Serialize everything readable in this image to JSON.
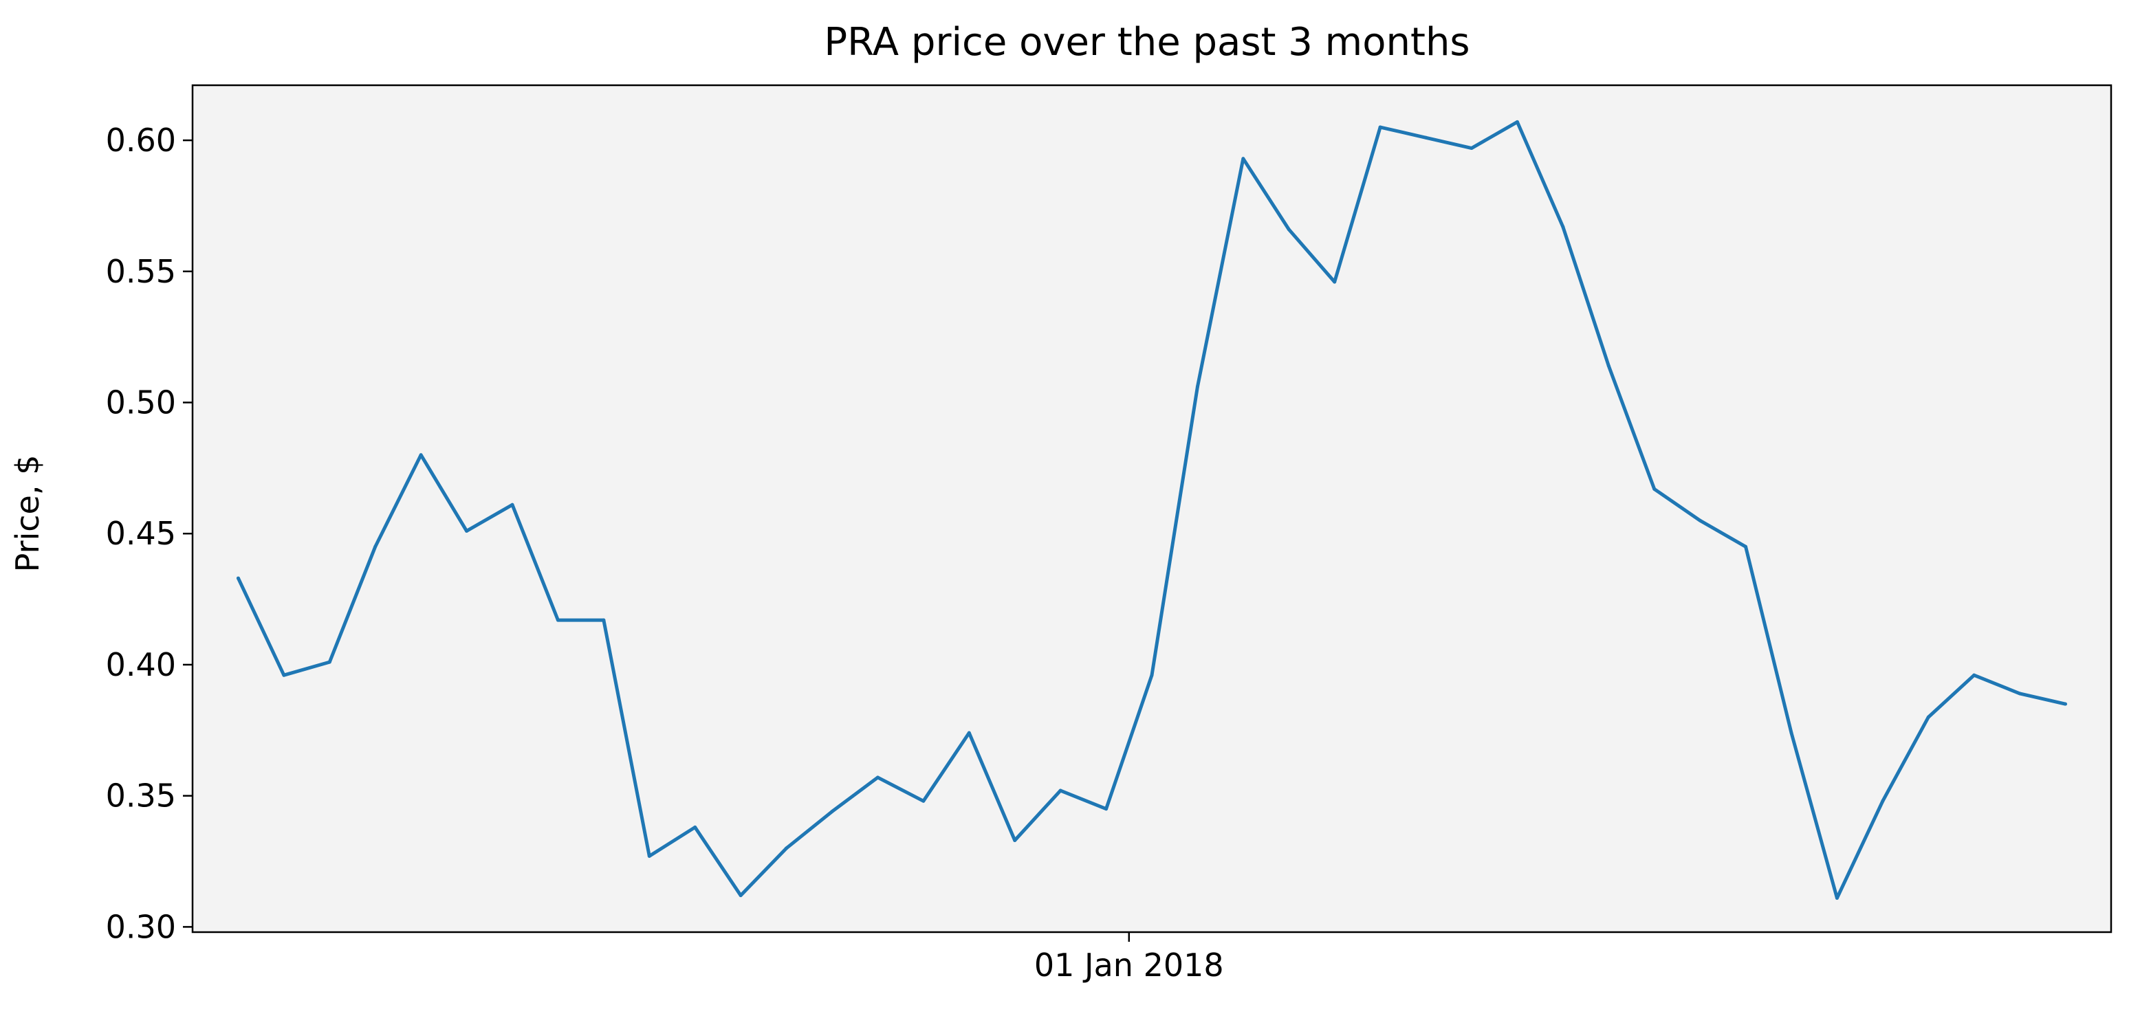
{
  "chart_data": {
    "type": "line",
    "title": "PRA price over the past 3 months",
    "xlabel": "",
    "ylabel": "Price, $",
    "ylim": [
      0.298,
      0.621
    ],
    "yticks": [
      0.3,
      0.35,
      0.4,
      0.45,
      0.5,
      0.55,
      0.6
    ],
    "ytick_labels": [
      "0.30",
      "0.35",
      "0.40",
      "0.45",
      "0.50",
      "0.55",
      "0.60"
    ],
    "xlim": [
      "2017-11-21",
      "2018-02-13"
    ],
    "xticks": [
      "2018-01-01"
    ],
    "xtick_labels": [
      "01 Jan 2018"
    ],
    "grid": false,
    "legend": "none",
    "colors": {
      "line": "#1f77b4",
      "plot_background": "#f3f3f3",
      "axes": "#000000"
    },
    "series": [
      {
        "x": [
          "2017-11-23",
          "2017-11-25",
          "2017-11-27",
          "2017-11-29",
          "2017-12-01",
          "2017-12-03",
          "2017-12-05",
          "2017-12-07",
          "2017-12-09",
          "2017-12-11",
          "2017-12-13",
          "2017-12-15",
          "2017-12-17",
          "2017-12-19",
          "2017-12-21",
          "2017-12-23",
          "2017-12-25",
          "2017-12-27",
          "2017-12-29",
          "2017-12-31",
          "2018-01-02",
          "2018-01-04",
          "2018-01-06",
          "2018-01-08",
          "2018-01-10",
          "2018-01-12",
          "2018-01-14",
          "2018-01-16",
          "2018-01-18",
          "2018-01-20",
          "2018-01-22",
          "2018-01-24",
          "2018-01-26",
          "2018-01-28",
          "2018-01-30",
          "2018-02-01",
          "2018-02-03",
          "2018-02-05",
          "2018-02-07",
          "2018-02-09",
          "2018-02-11"
        ],
        "values": [
          0.433,
          0.396,
          0.401,
          0.445,
          0.48,
          0.451,
          0.461,
          0.417,
          0.417,
          0.327,
          0.338,
          0.312,
          0.33,
          0.344,
          0.357,
          0.348,
          0.374,
          0.333,
          0.352,
          0.345,
          0.396,
          0.506,
          0.593,
          0.566,
          0.546,
          0.605,
          0.601,
          0.597,
          0.607,
          0.567,
          0.514,
          0.467,
          0.455,
          0.445,
          0.374,
          0.311,
          0.348,
          0.38,
          0.396,
          0.389,
          0.385
        ]
      }
    ]
  }
}
